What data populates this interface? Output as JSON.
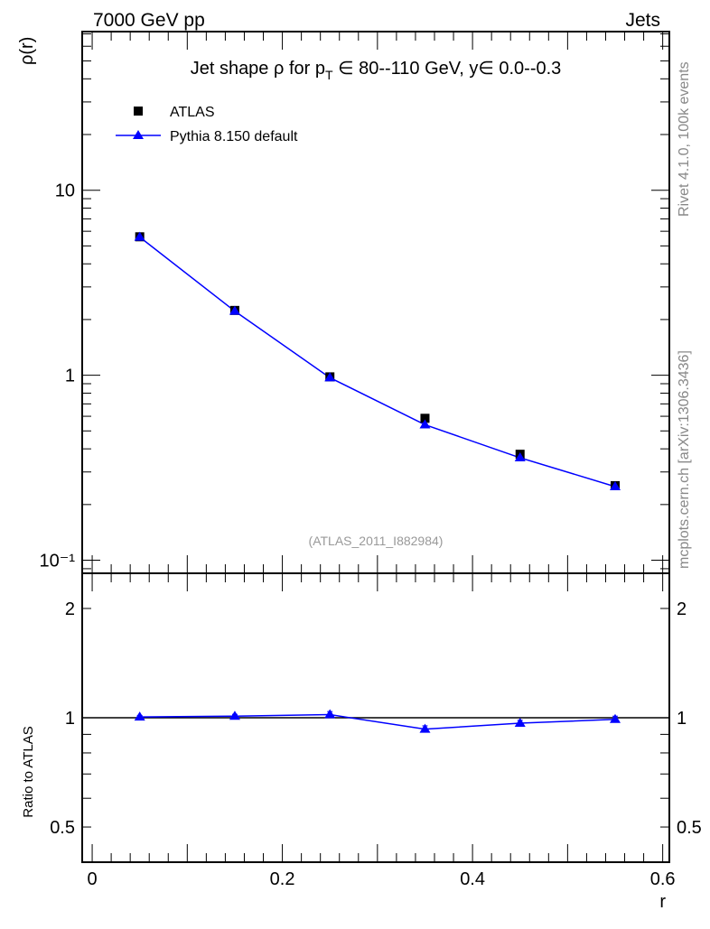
{
  "header": {
    "left": "7000 GeV pp",
    "right": "Jets"
  },
  "side_labels": {
    "rivet": "Rivet 4.1.0,  100k events",
    "mcplots": "mcplots.cern.ch [arXiv:1306.3436]"
  },
  "chart_data": [
    {
      "type": "line",
      "title_parts": {
        "a": "Jet shape ",
        "rho": "ρ",
        "b": " for p",
        "sub": "T",
        "c": " ∈ 80--110 GeV, y∈ 0.0--0.3"
      },
      "ylabel": "ρ(r)",
      "yscale": "log",
      "ylim": [
        0.085,
        72
      ],
      "xlim": [
        -0.0105,
        0.607
      ],
      "yticks": [
        {
          "v": 10,
          "label": "10"
        },
        {
          "v": 1,
          "label": "1"
        },
        {
          "v": 0.1,
          "label": "10⁻¹"
        }
      ],
      "watermark": "(ATLAS_2011_I882984)",
      "legend_position": "top-left",
      "x": [
        0.05,
        0.15,
        0.25,
        0.35,
        0.45,
        0.55
      ],
      "series": [
        {
          "name": "ATLAS",
          "marker": "square",
          "color": "#000000",
          "values": [
            5.6,
            2.24,
            0.98,
            0.585,
            0.374,
            0.253
          ]
        },
        {
          "name": "Pythia 8.150 default",
          "marker": "triangle",
          "color": "#0000ff",
          "values": [
            5.58,
            2.22,
            0.97,
            0.54,
            0.358,
            0.25
          ]
        }
      ]
    },
    {
      "type": "line",
      "ylabel": "Ratio to ATLAS",
      "xlabel": "r",
      "yscale": "log",
      "ylim": [
        0.4,
        2.5
      ],
      "xlim": [
        -0.0105,
        0.607
      ],
      "yticks": [
        {
          "v": 2,
          "label": "2"
        },
        {
          "v": 1,
          "label": "1"
        },
        {
          "v": 0.5,
          "label": "0.5"
        }
      ],
      "xticks": [
        {
          "v": 0,
          "label": "0"
        },
        {
          "v": 0.2,
          "label": "0.2"
        },
        {
          "v": 0.4,
          "label": "0.4"
        },
        {
          "v": 0.6,
          "label": "0.6"
        }
      ],
      "x": [
        0.05,
        0.15,
        0.25,
        0.35,
        0.45,
        0.55
      ],
      "series": [
        {
          "name": "Pythia 8.150 default",
          "color": "#0000ff",
          "values": [
            1.005,
            1.01,
            1.02,
            0.93,
            0.966,
            0.99
          ],
          "errors": [
            0.01,
            0.012,
            0.02,
            0.02,
            0.018,
            0.02
          ]
        }
      ]
    }
  ]
}
